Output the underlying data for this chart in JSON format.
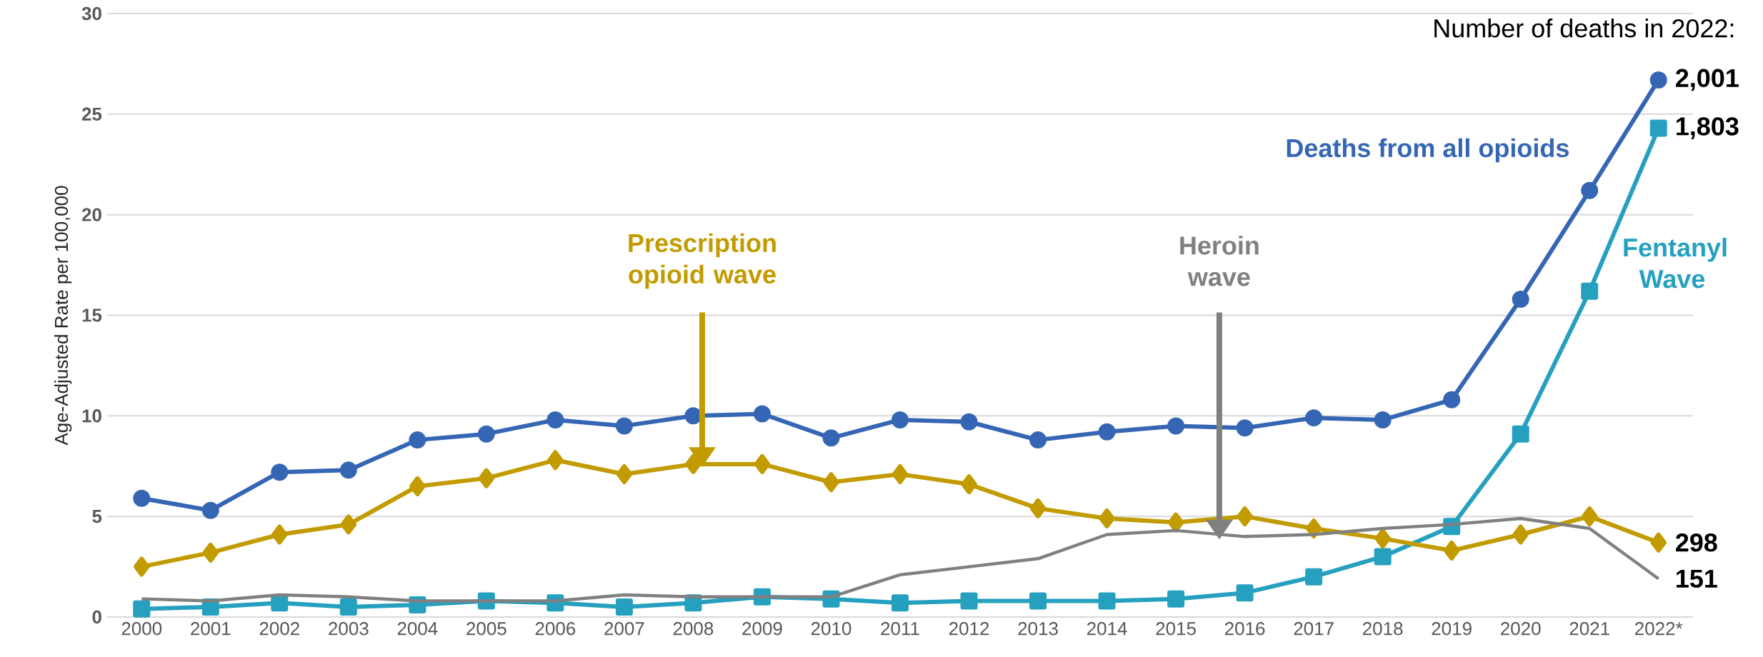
{
  "chart_data": {
    "type": "line",
    "ylabel": "Age-Adjusted Rate  per 100,000",
    "categories": [
      "2000",
      "2001",
      "2002",
      "2003",
      "2004",
      "2005",
      "2006",
      "2007",
      "2008",
      "2009",
      "2010",
      "2011",
      "2012",
      "2013",
      "2014",
      "2015",
      "2016",
      "2017",
      "2018",
      "2019",
      "2020",
      "2021",
      "2022*"
    ],
    "series": [
      {
        "name": "Deaths from all opioids",
        "color": "#3566b4",
        "marker": "circle",
        "values": [
          5.9,
          5.3,
          7.2,
          7.3,
          8.8,
          9.1,
          9.8,
          9.5,
          10.0,
          10.1,
          8.9,
          9.8,
          9.7,
          8.8,
          9.2,
          9.5,
          9.4,
          9.9,
          9.8,
          10.8,
          15.8,
          21.2,
          26.7
        ]
      },
      {
        "name": "Prescription opioid wave",
        "color": "#c29b00",
        "marker": "diamond",
        "values": [
          2.5,
          3.2,
          4.1,
          4.6,
          6.5,
          6.9,
          7.8,
          7.1,
          7.6,
          7.6,
          6.7,
          7.1,
          6.6,
          5.4,
          4.9,
          4.7,
          5.0,
          4.4,
          3.9,
          3.3,
          4.1,
          5.0,
          3.7
        ]
      },
      {
        "name": "Heroin wave",
        "color": "#808080",
        "marker": "none",
        "values": [
          0.9,
          0.8,
          1.1,
          1.0,
          0.8,
          0.8,
          0.8,
          1.1,
          1.0,
          1.0,
          1.0,
          2.1,
          2.5,
          2.9,
          4.1,
          4.3,
          4.0,
          4.1,
          4.4,
          4.6,
          4.9,
          4.4,
          1.9
        ]
      },
      {
        "name": "Fentanyl Wave",
        "color": "#26a0bf",
        "marker": "square",
        "values": [
          0.4,
          0.5,
          0.7,
          0.5,
          0.6,
          0.8,
          0.7,
          0.5,
          0.7,
          1.0,
          0.9,
          0.7,
          0.8,
          0.8,
          0.8,
          0.9,
          1.2,
          2.0,
          3.0,
          4.5,
          9.1,
          16.2,
          24.3
        ]
      }
    ],
    "ylim": [
      0,
      30
    ],
    "yticks": [
      0,
      5,
      10,
      15,
      20,
      25,
      30
    ],
    "grid": "y",
    "legend": false,
    "line_style": "solid",
    "annotations": [
      "Number of deaths in 2022:",
      {
        "text": "2,001",
        "x": "2022*",
        "y": 26.7
      },
      {
        "text": "1,803",
        "x": "2022*",
        "y": 24.3
      },
      {
        "text": "298",
        "x": "2022*",
        "y": 3.7
      },
      {
        "text": "151",
        "x": "2022*",
        "y": 1.9
      }
    ]
  }
}
